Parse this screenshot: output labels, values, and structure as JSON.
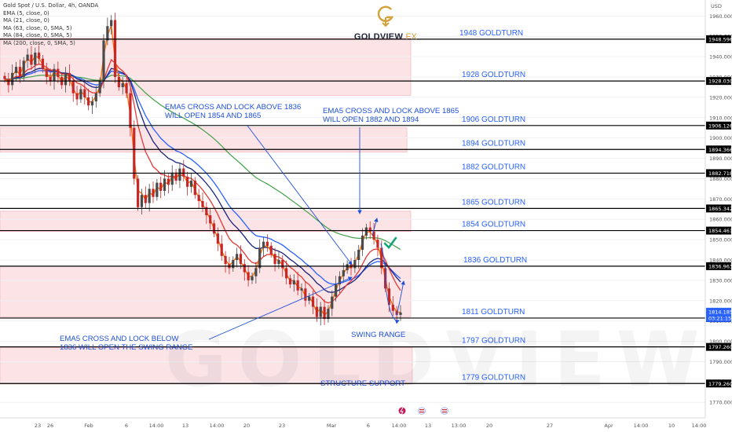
{
  "legend": {
    "symbol": "Gold Spot / U.S. Dollar, 4h, OANDA",
    "indicators": [
      "EMA (5, close, 0)",
      "MA (21, close, 0)",
      "MA (63, close, 0, SMA, 5)",
      "MA (84, close, 0, SMA, 5)",
      "MA (200, close, 0, SMA, 5)"
    ]
  },
  "logo": {
    "brand": "GOLDVIEW",
    "suffix": "FX"
  },
  "watermark": "GOLDVIEW FX",
  "colors": {
    "level_line": "#000000",
    "zone_fill": "#fbe3e6",
    "zone_border": "#f2a8b0",
    "label_blue": "#2962ff",
    "annotation_blue": "#1e4fd8",
    "up_candle": "#4a4a4a",
    "down_candle": "#c62828",
    "ema5": "#ff6d00",
    "ma21": "#e53935",
    "ma63": "#1a237e",
    "ma84": "#2962ff",
    "ma200": "#43a047",
    "check": "#12a37a",
    "brand_gold": "#d4a23a"
  },
  "chart_data": {
    "type": "candlestick",
    "timeframe": "4h",
    "currency": "USD",
    "ylim": [
      1767,
      1964
    ],
    "y_ticks": [
      1960.0,
      1950.0,
      1940.0,
      1930.0,
      1920.0,
      1910.0,
      1900.0,
      1890.0,
      1880.0,
      1870.0,
      1860.0,
      1850.0,
      1840.0,
      1830.0,
      1820.0,
      1810.0,
      1800.0,
      1790.0,
      1780.0,
      1770.0
    ],
    "x_ticks": [
      "23",
      "26",
      "Feb",
      "6",
      "14:00",
      "13",
      "14:00",
      "20",
      "23",
      "Mar",
      "6",
      "14:00",
      "13",
      "13:00",
      "20",
      "27",
      "Apr",
      "14:00",
      "10",
      "14:00"
    ],
    "price_labels": [
      {
        "text": "1948.596",
        "value": 1948.596
      },
      {
        "text": "1928.030",
        "value": 1928.03
      },
      {
        "text": "1906.126",
        "value": 1906.126
      },
      {
        "text": "1894.366",
        "value": 1894.366
      },
      {
        "text": "1882.718",
        "value": 1882.718
      },
      {
        "text": "1865.342",
        "value": 1865.342
      },
      {
        "text": "1854.461",
        "value": 1854.461
      },
      {
        "text": "1836.963",
        "value": 1836.963
      },
      {
        "text": "1811.441",
        "value": 1811.441
      },
      {
        "text": "1797.260",
        "value": 1797.26
      },
      {
        "text": "1779.260",
        "value": 1779.26
      }
    ],
    "current_price": {
      "price": "1814.185",
      "countdown": "03:21:15",
      "value": 1814.185
    },
    "levels": [
      {
        "label": "1948 GOLDTURN",
        "value": 1948.596
      },
      {
        "label": "1928 GOLDTURN",
        "value": 1928.03
      },
      {
        "label": "1906 GOLDTURN",
        "value": 1906.126
      },
      {
        "label": "1894 GOLDTURN",
        "value": 1894.366
      },
      {
        "label": "1882 GOLDTURN",
        "value": 1882.718
      },
      {
        "label": "1865 GOLDTURN",
        "value": 1865.342
      },
      {
        "label": "1854 GOLDTURN",
        "value": 1854.461
      },
      {
        "label": "1836 GOLDTURN",
        "value": 1836.963
      },
      {
        "label": "1811 GOLDTURN",
        "value": 1811.441
      },
      {
        "label": "1797 GOLDTURN",
        "value": 1797.26
      },
      {
        "label": "1779 GOLDTURN",
        "value": 1779.26
      }
    ],
    "zones": [
      {
        "top": 1949,
        "bottom": 1921
      },
      {
        "top": 1905,
        "bottom": 1893
      },
      {
        "top": 1864,
        "bottom": 1854
      },
      {
        "top": 1837,
        "bottom": 1812
      },
      {
        "top": 1797,
        "bottom": 1779
      }
    ],
    "annotations": [
      {
        "lines": [
          "EMA5 CROSS AND LOCK ABOVE 1836",
          "WILL OPEN  1854 AND 1865"
        ]
      },
      {
        "lines": [
          "EMA5 CROSS AND LOCK ABOVE 1865",
          "WILL OPEN  1882 AND 1894"
        ]
      },
      {
        "lines": [
          "EMA5 CROSS AND LOCK BELOW",
          "1836 WILL OPEN THE SWING RANGE"
        ]
      },
      {
        "lines": [
          "SWING RANGE"
        ]
      },
      {
        "lines": [
          "STRUCTURE SUPPORT"
        ]
      }
    ],
    "close_series": [
      1929,
      1926,
      1932,
      1935,
      1930,
      1938,
      1941,
      1936,
      1942,
      1939,
      1934,
      1930,
      1928,
      1934,
      1930,
      1926,
      1932,
      1928,
      1922,
      1919,
      1924,
      1920,
      1916,
      1918,
      1922,
      1928,
      1948,
      1955,
      1958,
      1930,
      1925,
      1927,
      1922,
      1905,
      1880,
      1866,
      1872,
      1868,
      1875,
      1871,
      1878,
      1874,
      1880,
      1877,
      1883,
      1879,
      1885,
      1881,
      1876,
      1879,
      1872,
      1869,
      1866,
      1862,
      1858,
      1853,
      1848,
      1842,
      1838,
      1836,
      1840,
      1843,
      1838,
      1834,
      1830,
      1832,
      1836,
      1846,
      1849,
      1847,
      1843,
      1838,
      1840,
      1836,
      1831,
      1828,
      1830,
      1825,
      1826,
      1820,
      1822,
      1817,
      1812,
      1817,
      1811,
      1816,
      1822,
      1828,
      1832,
      1835,
      1838,
      1836,
      1840,
      1845,
      1852,
      1856,
      1854,
      1850,
      1846,
      1836,
      1826,
      1818,
      1815,
      1813,
      1814.185
    ]
  }
}
